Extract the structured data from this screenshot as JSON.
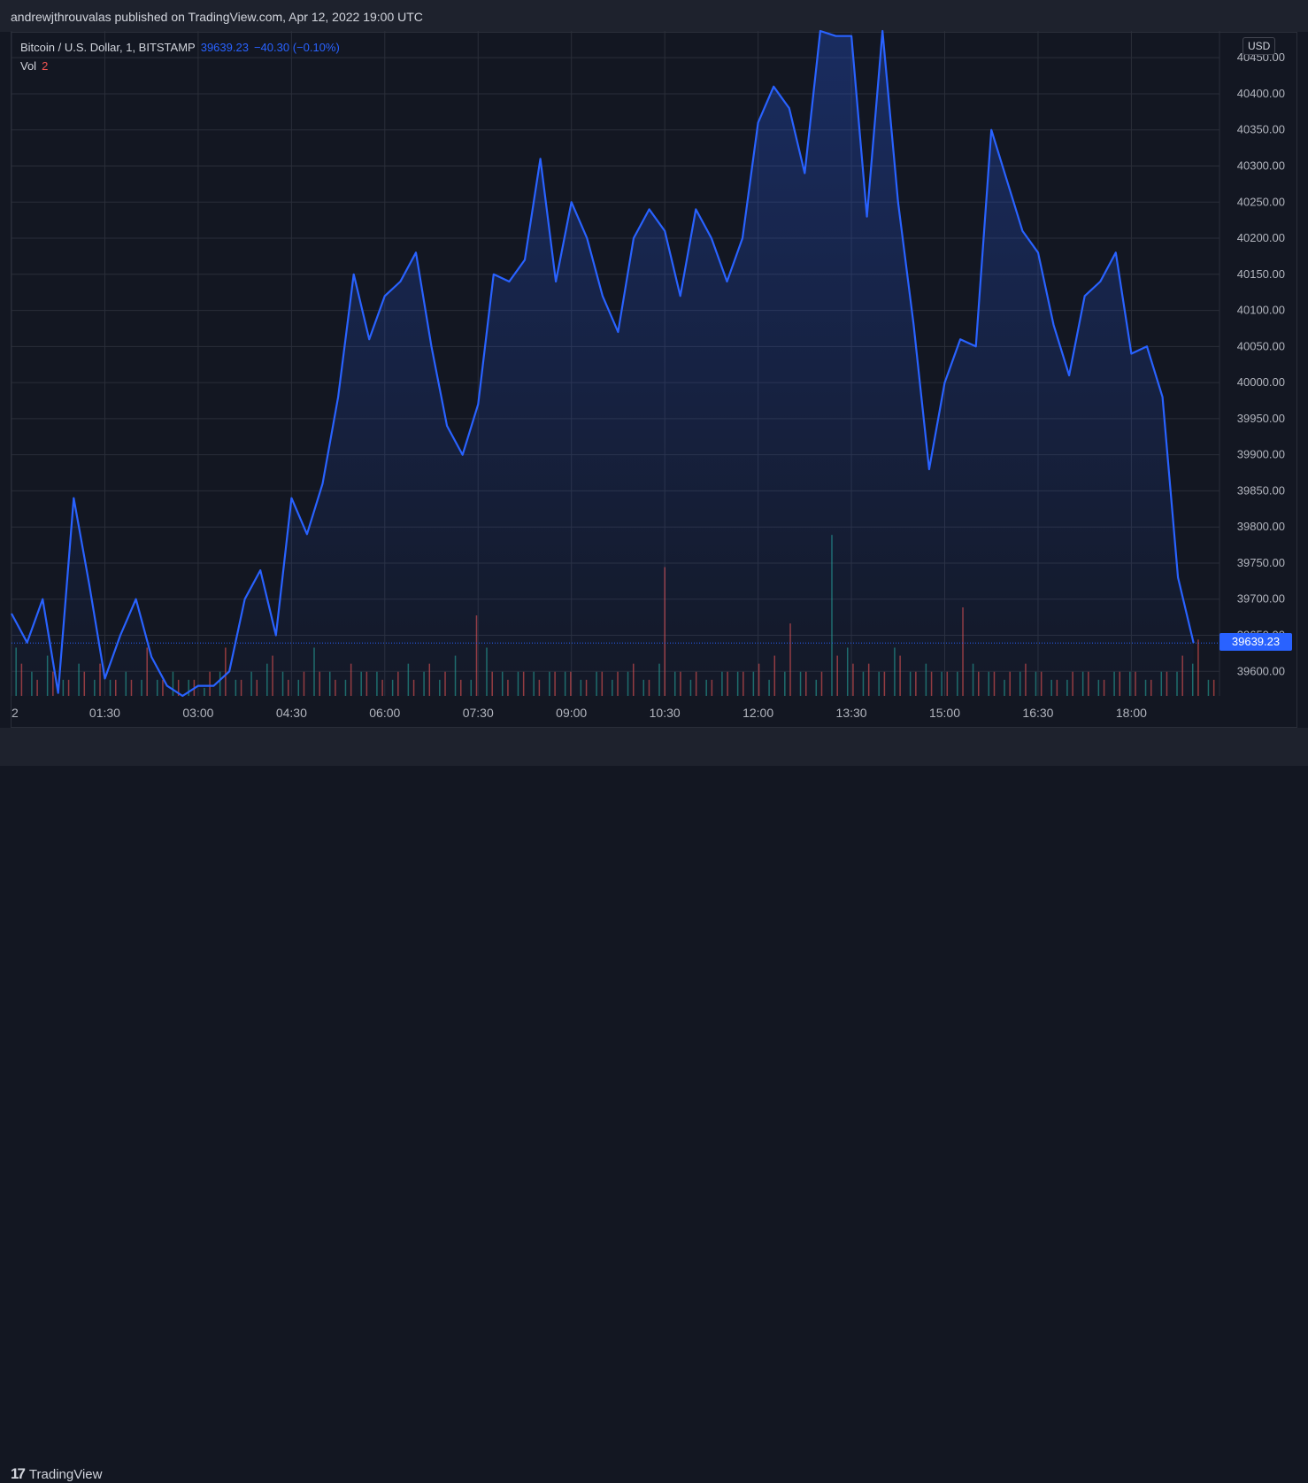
{
  "header": {
    "publish_line": "andrewjthrouvalas published on TradingView.com, Apr 12, 2022 19:00 UTC"
  },
  "legend": {
    "symbol": "Bitcoin / U.S. Dollar, 1, BITSTAMP",
    "last_price": "39639.23",
    "change": "−40.30 (−0.10%)",
    "vol_label": "Vol",
    "vol_value": "2"
  },
  "currency_button": "USD",
  "last_price_tag": "39639.23",
  "footer": {
    "brand": "TradingView",
    "logo_mark": "17"
  },
  "colors": {
    "background": "#131722",
    "line": "#2962ff",
    "area_fill": "#2962ff",
    "grid": "#2a2e39",
    "vol_up": "#26a69a",
    "vol_down": "#ef5350"
  },
  "chart_data": {
    "type": "area",
    "title": "",
    "xlabel": "",
    "ylabel": "",
    "currency": "USD",
    "x_ticks": [
      "2",
      "01:30",
      "03:00",
      "04:30",
      "06:00",
      "07:30",
      "09:00",
      "10:30",
      "12:00",
      "13:30",
      "15:00",
      "16:30",
      "18:00"
    ],
    "y_ticks": [
      "39600.00",
      "39650.00",
      "39700.00",
      "39750.00",
      "39800.00",
      "39850.00",
      "39900.00",
      "39950.00",
      "40000.00",
      "40050.00",
      "40100.00",
      "40150.00",
      "40200.00",
      "40250.00",
      "40300.00",
      "40350.00",
      "40400.00",
      "40450.00"
    ],
    "ylim": [
      39566,
      40487
    ],
    "last_price": 39639.23,
    "grid": true,
    "series": [
      {
        "x": [
          "00:00",
          "00:15",
          "00:30",
          "00:45",
          "01:00",
          "01:15",
          "01:30",
          "01:45",
          "02:00",
          "02:15",
          "02:30",
          "02:45",
          "03:00",
          "03:15",
          "03:30",
          "03:45",
          "04:00",
          "04:15",
          "04:30",
          "04:45",
          "05:00",
          "05:15",
          "05:30",
          "05:45",
          "06:00",
          "06:15",
          "06:30",
          "06:45",
          "07:00",
          "07:15",
          "07:30",
          "07:45",
          "08:00",
          "08:15",
          "08:30",
          "08:45",
          "09:00",
          "09:15",
          "09:30",
          "09:45",
          "10:00",
          "10:15",
          "10:30",
          "10:45",
          "11:00",
          "11:15",
          "11:30",
          "11:45",
          "12:00",
          "12:15",
          "12:30",
          "12:45",
          "13:00",
          "13:15",
          "13:30",
          "13:45",
          "14:00",
          "14:15",
          "14:30",
          "14:45",
          "15:00",
          "15:15",
          "15:30",
          "15:45",
          "16:00",
          "16:15",
          "16:30",
          "16:45",
          "17:00",
          "17:15",
          "17:30",
          "17:45",
          "18:00",
          "18:15",
          "18:30",
          "18:45",
          "19:00"
        ],
        "values": [
          39680,
          39640,
          39700,
          39570,
          39840,
          39720,
          39590,
          39650,
          39700,
          39620,
          39580,
          39560,
          39580,
          39580,
          39600,
          39700,
          39740,
          39650,
          39840,
          39790,
          39860,
          39980,
          40150,
          40060,
          40120,
          40140,
          40180,
          40050,
          39940,
          39900,
          39970,
          40150,
          40140,
          40170,
          40310,
          40140,
          40250,
          40200,
          40120,
          40070,
          40200,
          40240,
          40210,
          40120,
          40240,
          40200,
          40140,
          40200,
          40360,
          40410,
          40380,
          40290,
          40500,
          40480,
          40480,
          40230,
          40500,
          40250,
          40080,
          39880,
          40000,
          40060,
          40050,
          40350,
          40280,
          40210,
          40180,
          40080,
          40010,
          40120,
          40140,
          40180,
          40040,
          40050,
          39980,
          39730,
          39639.23
        ]
      }
    ],
    "volume": {
      "label": "Vol",
      "value": 2,
      "up": [
        0.6,
        0.3,
        0.5,
        0.2,
        0.4,
        0.2,
        0.2,
        0.3,
        0.2,
        0.2,
        0.3,
        0.2,
        0.1,
        0.3,
        0.2,
        0.3,
        0.4,
        0.3,
        0.2,
        0.6,
        0.3,
        0.2,
        0.3,
        0.3,
        0.2,
        0.4,
        0.3,
        0.2,
        0.5,
        0.2,
        0.6,
        0.3,
        0.3,
        0.3,
        0.3,
        0.3,
        0.2,
        0.3,
        0.2,
        0.3,
        0.2,
        0.4,
        0.3,
        0.2,
        0.2,
        0.3,
        0.3,
        0.3,
        0.2,
        0.3,
        0.3,
        0.2,
        2.0,
        0.6,
        0.3,
        0.3,
        0.6,
        0.3,
        0.4,
        0.3,
        0.3,
        0.4,
        0.3,
        0.2,
        0.3,
        0.3,
        0.2,
        0.2,
        0.3,
        0.2,
        0.3,
        0.3,
        0.2,
        0.3,
        0.3,
        0.4,
        0.2
      ],
      "down": [
        0.4,
        0.2,
        0.3,
        0.2,
        0.3,
        0.4,
        0.2,
        0.2,
        0.6,
        0.2,
        0.2,
        0.2,
        0.3,
        0.6,
        0.2,
        0.2,
        0.5,
        0.2,
        0.3,
        0.3,
        0.2,
        0.4,
        0.3,
        0.2,
        0.3,
        0.2,
        0.4,
        0.3,
        0.2,
        1.0,
        0.3,
        0.2,
        0.3,
        0.2,
        0.3,
        0.3,
        0.2,
        0.3,
        0.3,
        0.4,
        0.2,
        1.6,
        0.3,
        0.3,
        0.2,
        0.3,
        0.3,
        0.4,
        0.5,
        0.9,
        0.3,
        0.3,
        0.5,
        0.4,
        0.4,
        0.3,
        0.5,
        0.3,
        0.3,
        0.3,
        1.1,
        0.3,
        0.3,
        0.3,
        0.4,
        0.3,
        0.2,
        0.3,
        0.3,
        0.2,
        0.3,
        0.3,
        0.2,
        0.3,
        0.5,
        0.7,
        0.2
      ]
    }
  }
}
